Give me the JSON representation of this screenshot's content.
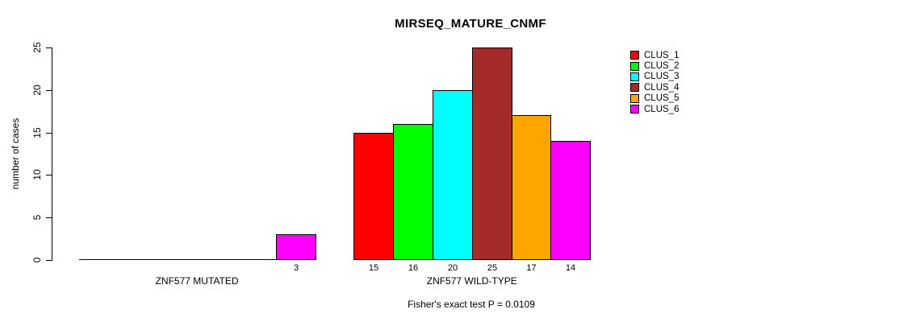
{
  "title": "MIRSEQ_MATURE_CNMF",
  "chart_data": {
    "type": "bar",
    "title": "MIRSEQ_MATURE_CNMF",
    "ylabel": "number of cases",
    "xlabel": "",
    "ylim": [
      0,
      25
    ],
    "yticks": [
      0,
      5,
      10,
      15,
      20,
      25
    ],
    "grid": false,
    "legend_position": "top-right",
    "series": [
      "CLUS_1",
      "CLUS_2",
      "CLUS_3",
      "CLUS_4",
      "CLUS_5",
      "CLUS_6"
    ],
    "colors": [
      "#FF0000",
      "#00FF00",
      "#00FFFF",
      "#A52A2A",
      "#FFA500",
      "#FF00FF"
    ],
    "groups": [
      {
        "label": "ZNF577 MUTATED",
        "values": [
          0,
          0,
          0,
          0,
          0,
          3
        ]
      },
      {
        "label": "ZNF577 WILD-TYPE",
        "values": [
          15,
          16,
          20,
          25,
          17,
          14
        ]
      }
    ],
    "bar_value_labels_shown": [
      "3",
      "15",
      "16",
      "20",
      "25",
      "17",
      "14"
    ],
    "footnote": "Fisher's exact test P = 0.0109"
  }
}
